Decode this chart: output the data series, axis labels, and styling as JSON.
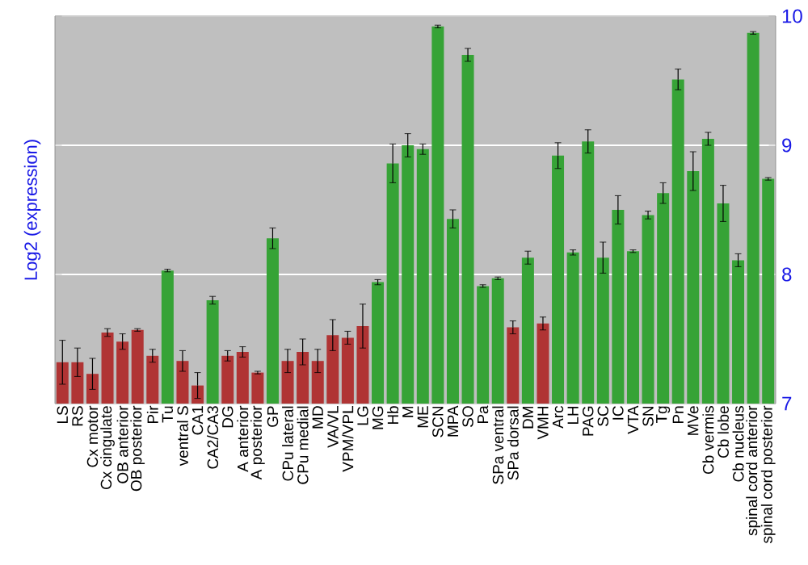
{
  "chart_data": {
    "type": "bar",
    "ylabel": "Log2 (expression)",
    "categories": [
      "LS",
      "RS",
      "Cx motor",
      "Cx cingulate",
      "OB anterior",
      "OB posterior",
      "Pir",
      "Tu",
      "ventral S",
      "CA1",
      "CA2/CA3",
      "DG",
      "A anterior",
      "A posterior",
      "GP",
      "CPu lateral",
      "CPu medial",
      "MD",
      "VA/VL",
      "VPM/VPL",
      "LG",
      "MG",
      "Hb",
      "M",
      "ME",
      "SCN",
      "MPA",
      "SO",
      "Pa",
      "SPa ventral",
      "SPa dorsal",
      "DM",
      "VMH",
      "Arc",
      "LH",
      "PAG",
      "SC",
      "IC",
      "VTA",
      "SN",
      "Tg",
      "Pn",
      "MVe",
      "Cb vermis",
      "Cb lobe",
      "Cb nucleus",
      "spinal cord anterior",
      "spinal cord posterior"
    ],
    "values": [
      7.32,
      7.32,
      7.23,
      7.55,
      7.48,
      7.57,
      7.37,
      8.03,
      7.33,
      7.14,
      7.8,
      7.37,
      7.4,
      7.24,
      8.28,
      7.33,
      7.4,
      7.33,
      7.53,
      7.51,
      7.6,
      7.94,
      8.86,
      9.0,
      8.97,
      9.92,
      8.43,
      9.7,
      7.91,
      7.97,
      7.59,
      8.13,
      7.62,
      8.92,
      8.17,
      9.03,
      8.13,
      8.5,
      8.18,
      8.46,
      8.63,
      9.51,
      8.8,
      9.05,
      8.55,
      8.11,
      9.87,
      8.74
    ],
    "errors": [
      0.17,
      0.11,
      0.12,
      0.03,
      0.06,
      0.01,
      0.05,
      0.01,
      0.08,
      0.1,
      0.03,
      0.04,
      0.04,
      0.01,
      0.08,
      0.09,
      0.1,
      0.09,
      0.12,
      0.05,
      0.17,
      0.02,
      0.15,
      0.09,
      0.04,
      0.01,
      0.07,
      0.05,
      0.01,
      0.01,
      0.05,
      0.05,
      0.05,
      0.1,
      0.02,
      0.09,
      0.12,
      0.11,
      0.01,
      0.03,
      0.08,
      0.08,
      0.15,
      0.05,
      0.14,
      0.05,
      0.01,
      0.01
    ],
    "colors": [
      "#b03434",
      "#b03434",
      "#b03434",
      "#b03434",
      "#b03434",
      "#b03434",
      "#b03434",
      "#36a336",
      "#b03434",
      "#b03434",
      "#36a336",
      "#b03434",
      "#b03434",
      "#b03434",
      "#36a336",
      "#b03434",
      "#b03434",
      "#b03434",
      "#b03434",
      "#b03434",
      "#b03434",
      "#36a336",
      "#36a336",
      "#36a336",
      "#36a336",
      "#36a336",
      "#36a336",
      "#36a336",
      "#36a336",
      "#36a336",
      "#b03434",
      "#36a336",
      "#b03434",
      "#36a336",
      "#36a336",
      "#36a336",
      "#36a336",
      "#36a336",
      "#36a336",
      "#36a336",
      "#36a336",
      "#36a336",
      "#36a336",
      "#36a336",
      "#36a336",
      "#36a336",
      "#36a336",
      "#36a336"
    ],
    "ylim": [
      7,
      10
    ],
    "yticks": [
      7,
      8,
      9,
      10
    ],
    "grid": "y"
  }
}
